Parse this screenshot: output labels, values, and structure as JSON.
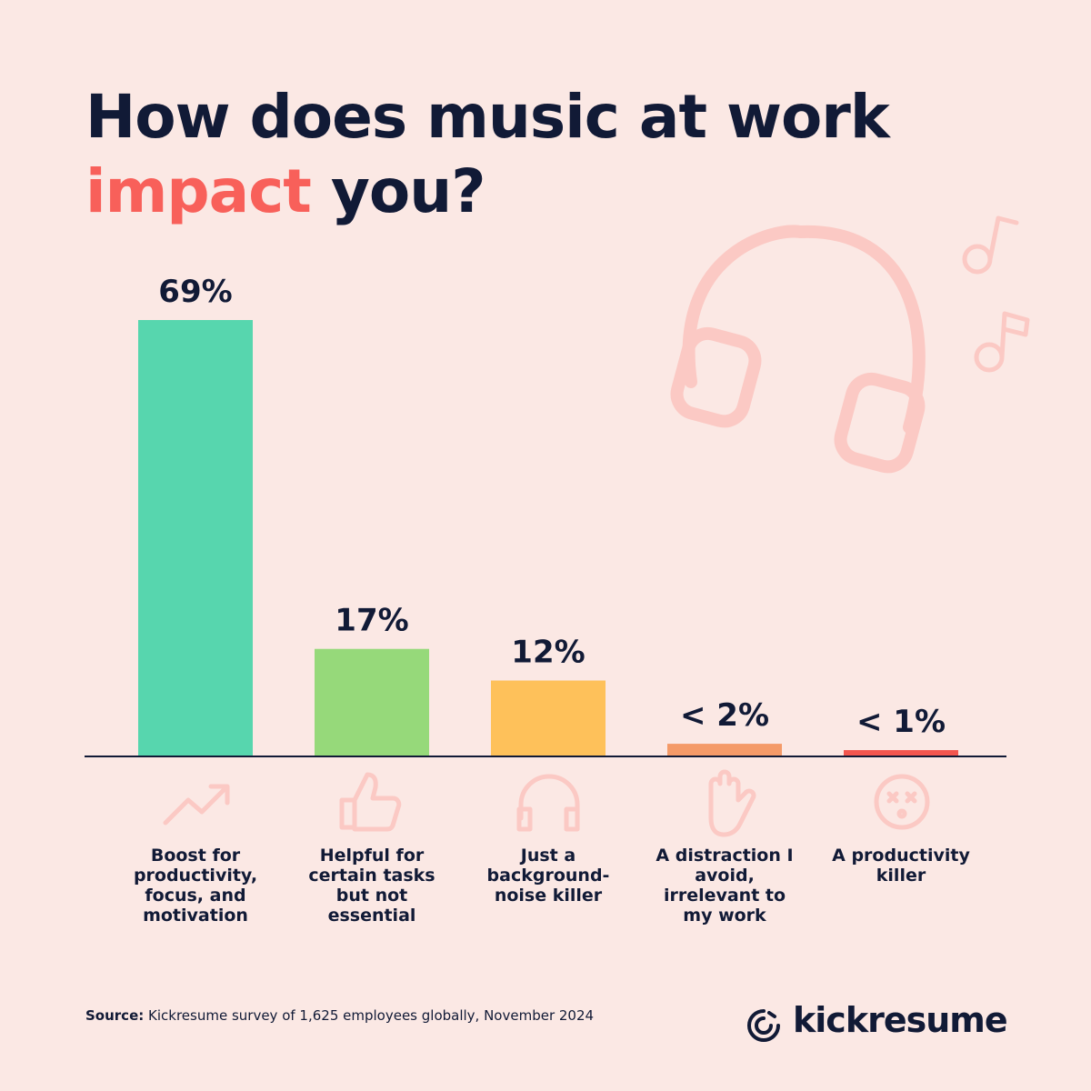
{
  "chart_data": {
    "type": "bar",
    "title": [
      "How does music at work",
      "impact",
      "you?"
    ],
    "categories": [
      "Boost for productivity, focus, and motivation",
      "Helpful for certain tasks but not essential",
      "Just a background-noise killer",
      "A distraction I avoid, irrelevant to my work",
      "A productivity killer"
    ],
    "values": [
      69,
      17,
      12,
      2,
      1
    ],
    "value_labels": [
      "69%",
      "17%",
      "12%",
      "< 2%",
      "< 1%"
    ],
    "colors": [
      "#57d6ae",
      "#96d97a",
      "#fec15a",
      "#f49a68",
      "#f2564f"
    ],
    "source_label": "Source:",
    "source": "Kickresume survey of 1,625 employees globally, November 2024"
  },
  "brand": "kickresume"
}
